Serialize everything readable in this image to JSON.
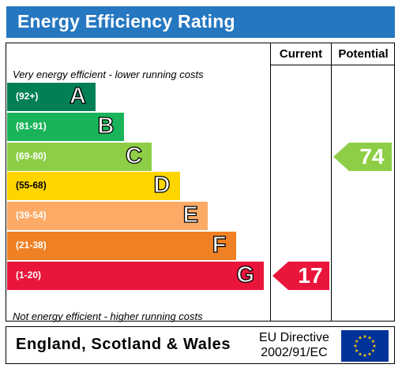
{
  "title": "Energy Efficiency Rating",
  "columns": {
    "current": "Current",
    "potential": "Potential"
  },
  "notes": {
    "top": "Very energy efficient - lower running costs",
    "bottom": "Not energy efficient - higher running costs"
  },
  "chart_data": {
    "type": "bar",
    "title": "Energy Efficiency Rating",
    "categories": [
      "A",
      "B",
      "C",
      "D",
      "E",
      "F",
      "G"
    ],
    "ranges": [
      "(92+)",
      "(81-91)",
      "(69-80)",
      "(55-68)",
      "(39-54)",
      "(21-38)",
      "(1-20)"
    ],
    "colors": [
      "#008054",
      "#19b459",
      "#8dce46",
      "#ffd500",
      "#fcaa65",
      "#ef8023",
      "#e9153b"
    ],
    "current": {
      "value": 17,
      "band": "G"
    },
    "potential": {
      "value": 74,
      "band": "C"
    }
  },
  "footer": {
    "region": "England, Scotland & Wales",
    "directive_line1": "EU Directive",
    "directive_line2": "2002/91/EC"
  },
  "flag_colors": {
    "background": "#003399",
    "stars": "#ffcc00"
  }
}
